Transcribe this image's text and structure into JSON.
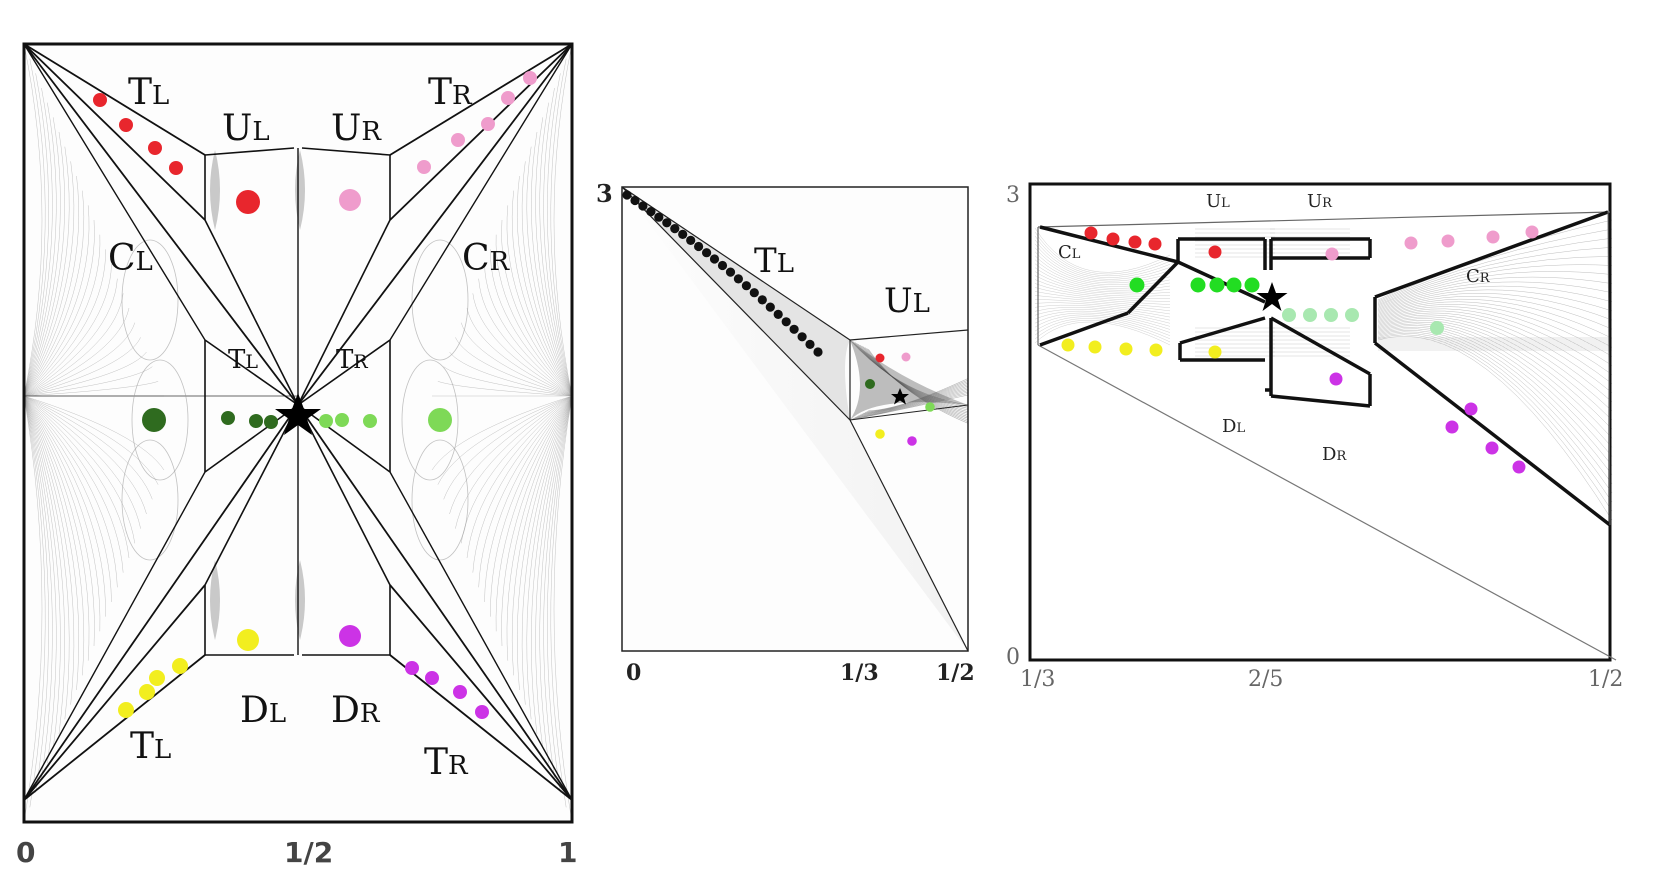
{
  "panels": [
    {
      "id": "left",
      "x_ticks": [
        "0",
        "1/2",
        "1"
      ],
      "regions": {
        "tl_top": {
          "main": "T",
          "sub": "L"
        },
        "tr_top": {
          "main": "T",
          "sub": "R"
        },
        "ul": {
          "main": "U",
          "sub": "L"
        },
        "ur": {
          "main": "U",
          "sub": "R"
        },
        "cl": {
          "main": "C",
          "sub": "L"
        },
        "cr": {
          "main": "C",
          "sub": "R"
        },
        "tl_mid": {
          "main": "T",
          "sub": "L"
        },
        "tr_mid": {
          "main": "T",
          "sub": "R"
        },
        "dl": {
          "main": "D",
          "sub": "L"
        },
        "dr": {
          "main": "D",
          "sub": "R"
        },
        "tl_bot": {
          "main": "T",
          "sub": "L"
        },
        "tr_bot": {
          "main": "T",
          "sub": "R"
        }
      }
    },
    {
      "id": "middle",
      "y_tick": "3",
      "x_ticks": [
        "0",
        "1/3",
        "1/2"
      ],
      "regions": {
        "tl": {
          "main": "T",
          "sub": "L"
        },
        "ul": {
          "main": "U",
          "sub": "L"
        }
      }
    },
    {
      "id": "right",
      "y_ticks": [
        "3",
        "0"
      ],
      "x_ticks": [
        "1/3",
        "2/5",
        "1/2"
      ],
      "regions": {
        "ul": {
          "main": "U",
          "sub": "L"
        },
        "ur": {
          "main": "U",
          "sub": "R"
        },
        "cl": {
          "main": "C",
          "sub": "L"
        },
        "cr": {
          "main": "C",
          "sub": "R"
        },
        "dl": {
          "main": "D",
          "sub": "L"
        },
        "dr": {
          "main": "D",
          "sub": "R"
        }
      }
    }
  ],
  "colors": {
    "red": "#e8262d",
    "pink": "#ef9ccc",
    "dark_green": "#2f6b1f",
    "light_green": "#7ed957",
    "yellow": "#f2ee1f",
    "magenta": "#cc33e6",
    "bright_green": "#22dd22",
    "pale_green": "#a8e8b0"
  }
}
